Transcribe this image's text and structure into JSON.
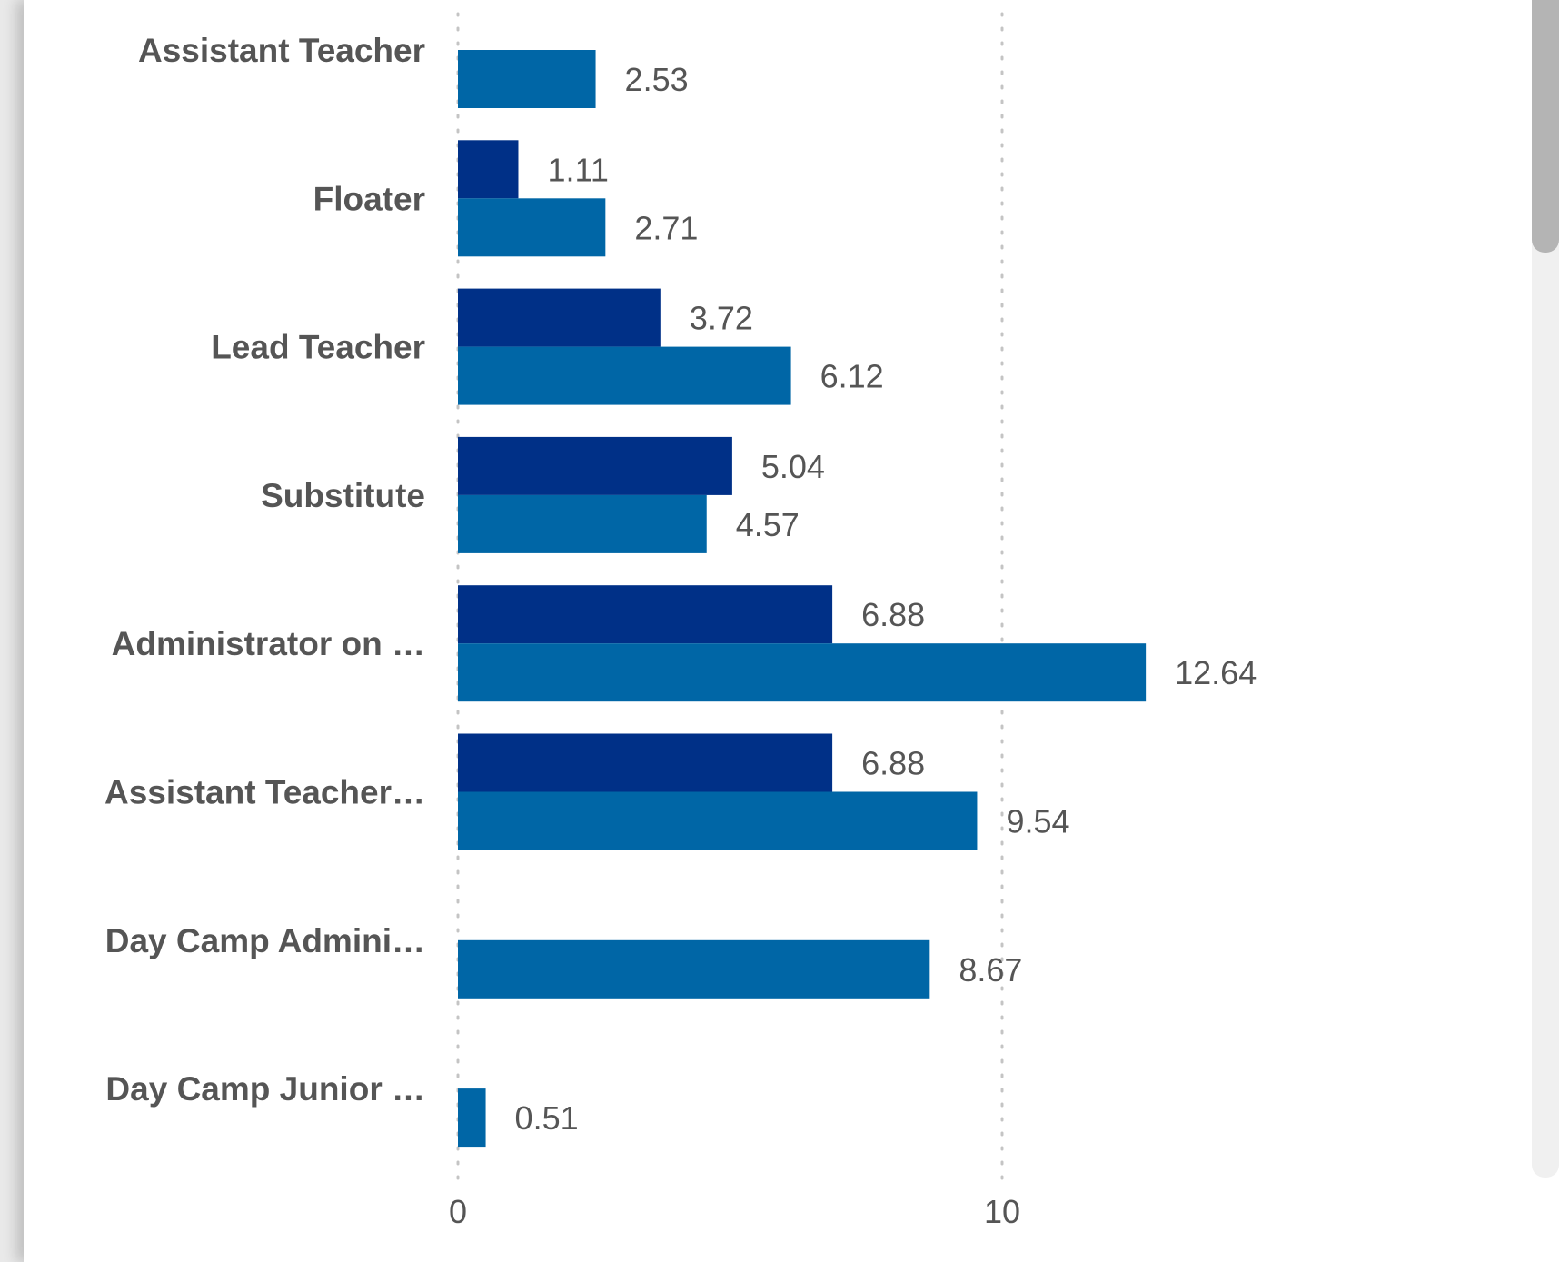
{
  "chart_data": {
    "type": "bar",
    "orientation": "horizontal",
    "categories": [
      "Assistant Teacher",
      "Floater",
      "Lead Teacher",
      "Substitute",
      "Administrator on …",
      "Assistant Teacher…",
      "Day Camp Admini…",
      "Day Camp Junior …"
    ],
    "series": [
      {
        "color": "#003087",
        "values": [
          null,
          1.11,
          3.72,
          5.04,
          6.88,
          6.88,
          null,
          null
        ],
        "labels": [
          "",
          "1.11",
          "3.72",
          "5.04",
          "6.88",
          "6.88",
          "",
          ""
        ]
      },
      {
        "color": "#0066a6",
        "values": [
          2.53,
          2.71,
          6.12,
          4.57,
          12.64,
          9.54,
          8.67,
          0.51
        ],
        "labels": [
          "2.53",
          "2.71",
          "6.12",
          "4.57",
          "12.64",
          "9.54",
          "8.67",
          "0.51"
        ]
      }
    ],
    "xlim": [
      0,
      22
    ],
    "xticks": [
      0,
      10
    ],
    "xtick_labels": [
      "0",
      "10"
    ],
    "gridlines": "dotted-vertical",
    "grid_color": "#c4c4c4"
  }
}
